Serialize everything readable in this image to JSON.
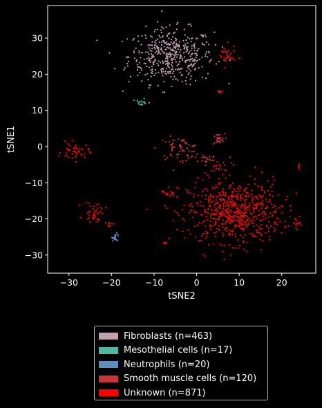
{
  "chart_data": {
    "type": "scatter",
    "title": "",
    "xlabel": "tSNE2",
    "ylabel": "tSNE1",
    "xlim": [
      -35,
      28
    ],
    "ylim": [
      -35,
      39
    ],
    "xticks": [
      -30,
      -20,
      -10,
      0,
      10,
      20
    ],
    "yticks": [
      -30,
      -20,
      -10,
      0,
      10,
      20,
      30
    ],
    "grid": false,
    "legend_position": "below",
    "series": [
      {
        "name": "Fibroblasts (n=463)",
        "n": 463,
        "color": "#c4a0b0",
        "clusters": [
          {
            "cx": -6,
            "cy": 25,
            "sx": 5.0,
            "sy": 3.8,
            "count": 463
          }
        ]
      },
      {
        "name": "Mesothelial cells (n=17)",
        "n": 17,
        "color": "#4fb8a0",
        "clusters": [
          {
            "cx": -13,
            "cy": 12.3,
            "sx": 0.6,
            "sy": 0.5,
            "count": 17
          }
        ]
      },
      {
        "name": "Neutrophils (n=20)",
        "n": 20,
        "color": "#5b8fbf",
        "clusters": [
          {
            "cx": -19,
            "cy": -25,
            "sx": 0.4,
            "sy": 0.5,
            "count": 20
          }
        ]
      },
      {
        "name": "Smooth muscle cells (n=120)",
        "n": 120,
        "color": "#c8343c",
        "clusters": [
          {
            "cx": -4,
            "cy": -0.5,
            "sx": 2.5,
            "sy": 1.5,
            "count": 65
          },
          {
            "cx": 5,
            "cy": 2,
            "sx": 0.8,
            "sy": 0.8,
            "count": 25
          },
          {
            "cx": 3,
            "cy": -4,
            "sx": 3.0,
            "sy": 1.2,
            "count": 30
          }
        ]
      },
      {
        "name": "Unknown (n=871)",
        "n": 871,
        "color": "#ff0000",
        "clusters": [
          {
            "cx": 9,
            "cy": -18,
            "sx": 5.5,
            "sy": 4.2,
            "count": 680
          },
          {
            "cx": 7,
            "cy": 25,
            "sx": 1.0,
            "sy": 1.5,
            "count": 35
          },
          {
            "cx": 5.5,
            "cy": 15,
            "sx": 0.3,
            "sy": 0.3,
            "count": 6
          },
          {
            "cx": -28.5,
            "cy": -1.5,
            "sx": 1.6,
            "sy": 1.2,
            "count": 45
          },
          {
            "cx": -24,
            "cy": -18,
            "sx": 1.2,
            "sy": 1.4,
            "count": 40
          },
          {
            "cx": -20.5,
            "cy": -21.5,
            "sx": 0.5,
            "sy": 0.4,
            "count": 8
          },
          {
            "cx": -6.5,
            "cy": -12.5,
            "sx": 1.0,
            "sy": 0.8,
            "count": 20
          },
          {
            "cx": -7.5,
            "cy": -26.5,
            "sx": 0.3,
            "sy": 0.2,
            "count": 5
          },
          {
            "cx": 23.5,
            "cy": -21.5,
            "sx": 0.8,
            "sy": 1.0,
            "count": 12
          },
          {
            "cx": 24,
            "cy": -5,
            "sx": 0.3,
            "sy": 0.5,
            "count": 5
          },
          {
            "cx": 4.5,
            "cy": -6,
            "sx": 1.0,
            "sy": 0.8,
            "count": 15
          }
        ]
      }
    ]
  }
}
